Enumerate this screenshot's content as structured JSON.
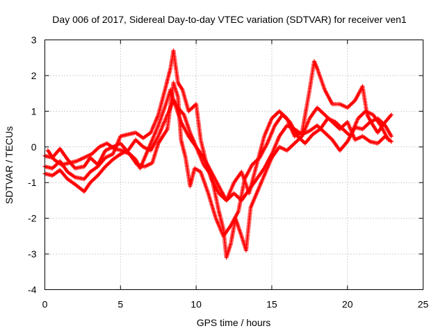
{
  "chart_data": {
    "type": "scatter",
    "title": "Day 006 of 2017, Sidereal Day-to-day VTEC variation (SDTVAR) for receiver ven1",
    "xlabel": "GPS time / hours",
    "ylabel": "SDTVAR / TECUs",
    "xlim": [
      0,
      25
    ],
    "ylim": [
      -4,
      3
    ],
    "xticks": [
      "0",
      "5",
      "10",
      "15",
      "20",
      "25"
    ],
    "yticks": [
      "-4",
      "-3",
      "-2",
      "-1",
      "0",
      "1",
      "2",
      "3"
    ],
    "grid": true,
    "marker": "plus",
    "color": "#ff0000",
    "series": [
      {
        "points": [
          [
            0,
            -0.25
          ],
          [
            0.5,
            -0.3
          ],
          [
            1.0,
            -0.05
          ],
          [
            1.5,
            -0.35
          ],
          [
            2.0,
            -0.6
          ],
          [
            2.6,
            -0.55
          ],
          [
            3.0,
            -0.3
          ],
          [
            3.5,
            -0.5
          ],
          [
            4.0,
            -0.1
          ],
          [
            4.5,
            0.0
          ],
          [
            5.0,
            0.1
          ],
          [
            5.5,
            -0.15
          ],
          [
            6.0,
            -0.35
          ],
          [
            6.3,
            -0.6
          ],
          [
            6.6,
            -0.3
          ],
          [
            7.0,
            0.1
          ],
          [
            7.5,
            0.6
          ],
          [
            8.0,
            1.2
          ],
          [
            8.3,
            1.6
          ],
          [
            8.6,
            1.2
          ],
          [
            9.0,
            0.7
          ],
          [
            9.5,
            0.3
          ],
          [
            10.0,
            0.0
          ],
          [
            10.5,
            -0.3
          ],
          [
            11.0,
            -0.7
          ],
          [
            11.5,
            -1.1
          ],
          [
            12.0,
            -1.5
          ],
          [
            12.5,
            -1.3
          ],
          [
            13.0,
            -1.5
          ],
          [
            13.5,
            -1.2
          ],
          [
            14.0,
            -0.9
          ],
          [
            14.5,
            -0.6
          ],
          [
            15.0,
            -0.2
          ],
          [
            15.5,
            0.3
          ],
          [
            16.0,
            0.6
          ],
          [
            16.5,
            0.5
          ],
          [
            17.0,
            0.35
          ],
          [
            17.5,
            0.45
          ],
          [
            18.0,
            0.6
          ],
          [
            18.5,
            0.4
          ],
          [
            19.0,
            0.2
          ],
          [
            19.5,
            -0.1
          ],
          [
            20.0,
            0.15
          ],
          [
            20.5,
            0.55
          ],
          [
            21.0,
            0.5
          ],
          [
            21.5,
            0.7
          ],
          [
            22.0,
            0.8
          ],
          [
            22.5,
            0.6
          ],
          [
            22.9,
            0.3
          ]
        ]
      },
      {
        "points": [
          [
            0,
            -0.75
          ],
          [
            0.5,
            -0.8
          ],
          [
            1.0,
            -0.65
          ],
          [
            1.5,
            -0.9
          ],
          [
            2.0,
            -1.05
          ],
          [
            2.6,
            -1.25
          ],
          [
            3.0,
            -1.0
          ],
          [
            3.5,
            -0.8
          ],
          [
            4.0,
            -0.55
          ],
          [
            4.5,
            -0.35
          ],
          [
            5.0,
            -0.2
          ],
          [
            5.5,
            -0.1
          ],
          [
            6.0,
            0.2
          ],
          [
            6.5,
            0.0
          ],
          [
            7.0,
            -0.1
          ],
          [
            7.5,
            0.3
          ],
          [
            8.0,
            0.8
          ],
          [
            8.5,
            1.3
          ],
          [
            8.8,
            1.1
          ],
          [
            9.2,
            0.9
          ],
          [
            9.6,
            0.4
          ],
          [
            10.0,
            0.0
          ],
          [
            10.5,
            -0.5
          ],
          [
            11.0,
            -0.8
          ],
          [
            11.5,
            -1.8
          ],
          [
            11.8,
            -2.3
          ],
          [
            12.0,
            -3.1
          ],
          [
            12.3,
            -2.7
          ],
          [
            12.6,
            -2.0
          ],
          [
            13.0,
            -2.5
          ],
          [
            13.3,
            -2.9
          ],
          [
            13.6,
            -1.7
          ],
          [
            14.0,
            -1.3
          ],
          [
            14.5,
            -0.8
          ],
          [
            15.0,
            -0.3
          ],
          [
            15.5,
            0.0
          ],
          [
            16.0,
            -0.1
          ],
          [
            16.5,
            0.1
          ],
          [
            17.0,
            0.3
          ],
          [
            17.5,
            0.8
          ],
          [
            18.0,
            1.1
          ],
          [
            18.5,
            0.9
          ],
          [
            19.0,
            0.7
          ],
          [
            19.5,
            0.5
          ],
          [
            20.0,
            0.7
          ],
          [
            20.5,
            0.2
          ],
          [
            21.0,
            0.3
          ],
          [
            21.5,
            0.15
          ],
          [
            22.0,
            0.1
          ],
          [
            22.5,
            0.3
          ],
          [
            22.9,
            0.15
          ]
        ]
      },
      {
        "points": [
          [
            0,
            -0.55
          ],
          [
            0.5,
            -0.6
          ],
          [
            1.0,
            -0.4
          ],
          [
            1.5,
            -0.7
          ],
          [
            2.0,
            -0.85
          ],
          [
            2.6,
            -0.9
          ],
          [
            3.0,
            -0.7
          ],
          [
            3.5,
            -0.55
          ],
          [
            4.0,
            -0.3
          ],
          [
            4.5,
            -0.2
          ],
          [
            5.0,
            0.3
          ],
          [
            5.5,
            0.35
          ],
          [
            6.0,
            0.4
          ],
          [
            6.5,
            0.25
          ],
          [
            7.0,
            0.4
          ],
          [
            7.5,
            0.9
          ],
          [
            8.0,
            1.7
          ],
          [
            8.3,
            2.2
          ],
          [
            8.5,
            2.7
          ],
          [
            8.8,
            1.8
          ],
          [
            9.1,
            1.6
          ],
          [
            9.5,
            1.0
          ],
          [
            10.0,
            1.2
          ],
          [
            10.3,
            0.2
          ],
          [
            10.7,
            -0.5
          ],
          [
            11.0,
            -0.9
          ],
          [
            11.5,
            -1.3
          ],
          [
            12.0,
            -1.5
          ],
          [
            12.5,
            -1.0
          ],
          [
            13.0,
            -0.7
          ],
          [
            13.5,
            -1.3
          ],
          [
            14.0,
            -0.5
          ],
          [
            14.5,
            0.3
          ],
          [
            15.0,
            0.8
          ],
          [
            15.5,
            1.0
          ],
          [
            16.0,
            0.8
          ],
          [
            16.5,
            0.3
          ],
          [
            17.0,
            0.4
          ],
          [
            17.5,
            1.6
          ],
          [
            17.8,
            2.4
          ],
          [
            18.0,
            2.2
          ],
          [
            18.5,
            1.6
          ],
          [
            19.0,
            1.2
          ],
          [
            19.5,
            1.2
          ],
          [
            20.0,
            1.1
          ],
          [
            20.5,
            1.3
          ],
          [
            21.0,
            1.7
          ],
          [
            21.3,
            0.9
          ],
          [
            21.7,
            0.6
          ],
          [
            22.0,
            0.4
          ],
          [
            22.5,
            0.7
          ],
          [
            22.9,
            0.9
          ]
        ]
      },
      {
        "points": [
          [
            0.2,
            -0.1
          ],
          [
            0.6,
            -0.35
          ],
          [
            1.1,
            -0.5
          ],
          [
            1.6,
            -0.45
          ],
          [
            2.1,
            -0.4
          ],
          [
            2.6,
            -0.3
          ],
          [
            3.1,
            -0.2
          ],
          [
            3.6,
            0.0
          ],
          [
            4.1,
            0.1
          ],
          [
            4.6,
            -0.05
          ],
          [
            5.1,
            -0.1
          ],
          [
            5.6,
            -0.2
          ],
          [
            6.1,
            -0.5
          ],
          [
            6.6,
            -0.55
          ],
          [
            7.1,
            -0.45
          ],
          [
            7.5,
            0.1
          ],
          [
            8.1,
            0.5
          ],
          [
            8.5,
            1.8
          ],
          [
            8.8,
            1.4
          ],
          [
            9.0,
            0.2
          ],
          [
            9.3,
            -0.3
          ],
          [
            9.6,
            -1.1
          ],
          [
            9.9,
            -0.6
          ],
          [
            10.3,
            -0.7
          ],
          [
            10.8,
            -1.3
          ],
          [
            11.3,
            -2.0
          ],
          [
            11.8,
            -2.5
          ],
          [
            12.3,
            -2.2
          ],
          [
            12.8,
            -1.8
          ],
          [
            13.2,
            -0.9
          ],
          [
            13.7,
            -0.5
          ],
          [
            14.2,
            -0.3
          ],
          [
            14.7,
            0.1
          ],
          [
            15.2,
            0.6
          ],
          [
            15.7,
            0.9
          ],
          [
            16.2,
            0.7
          ],
          [
            16.7,
            0.3
          ],
          [
            17.2,
            0.1
          ],
          [
            17.7,
            0.35
          ],
          [
            18.2,
            0.5
          ],
          [
            18.7,
            0.8
          ],
          [
            19.2,
            0.7
          ],
          [
            19.7,
            0.5
          ],
          [
            20.2,
            0.3
          ],
          [
            20.7,
            0.8
          ],
          [
            21.2,
            1.0
          ],
          [
            21.7,
            0.9
          ],
          [
            22.2,
            0.6
          ],
          [
            22.7,
            0.2
          ]
        ]
      }
    ]
  }
}
